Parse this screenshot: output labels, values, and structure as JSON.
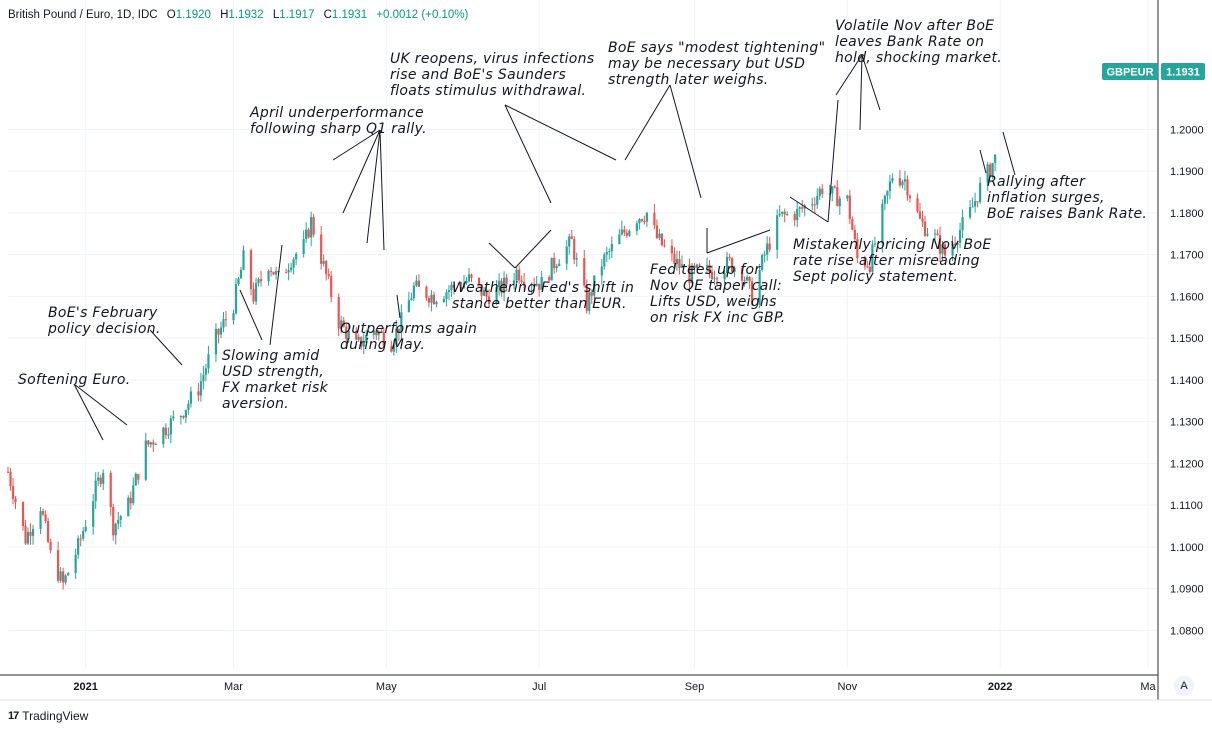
{
  "header": {
    "symbol": "British Pound / Euro, 1D, IDC",
    "open_label": "O",
    "open": "1.1920",
    "high_label": "H",
    "high": "1.1932",
    "low_label": "L",
    "low": "1.1917",
    "close_label": "C",
    "close": "1.1931",
    "change": "+0.0012 (+0.10%)"
  },
  "price_tag": {
    "ticker": "GBPEUR",
    "price": "1.1931"
  },
  "watermark": "TradingView",
  "auto_scale_button": "A",
  "colors": {
    "up": "#26a69a",
    "down": "#ef5350",
    "grid": "#f0f3fa",
    "axis_text": "#131722",
    "tag_bg": "#26a69a"
  },
  "chart_data": {
    "type": "candlestick",
    "x_range": [
      "2020-12-01",
      "2022-03-05"
    ],
    "x_ticks": [
      {
        "date": "2021-01-01",
        "label": "2021",
        "bold": true
      },
      {
        "date": "2021-03-01",
        "label": "Mar"
      },
      {
        "date": "2021-05-01",
        "label": "May"
      },
      {
        "date": "2021-07-01",
        "label": "Jul"
      },
      {
        "date": "2021-09-01",
        "label": "Sep"
      },
      {
        "date": "2021-11-01",
        "label": "Nov"
      },
      {
        "date": "2022-01-01",
        "label": "2022",
        "bold": true
      },
      {
        "date": "2022-03-01",
        "label": "Ma"
      }
    ],
    "y_ticks": [
      "1.2000",
      "1.1900",
      "1.1800",
      "1.1700",
      "1.1600",
      "1.1500",
      "1.1400",
      "1.1300",
      "1.1200",
      "1.1100",
      "1.1000",
      "1.0900",
      "1.0800"
    ],
    "y_range": [
      1.071,
      1.231
    ],
    "close_path": [
      [
        "2020-12-01",
        1.118
      ],
      [
        "2020-12-08",
        1.102
      ],
      [
        "2020-12-14",
        1.11
      ],
      [
        "2020-12-18",
        1.098
      ],
      [
        "2020-12-23",
        1.091
      ],
      [
        "2020-12-29",
        1.1
      ],
      [
        "2021-01-04",
        1.112
      ],
      [
        "2021-01-08",
        1.119
      ],
      [
        "2021-01-12",
        1.105
      ],
      [
        "2021-01-18",
        1.11
      ],
      [
        "2021-01-25",
        1.124
      ],
      [
        "2021-02-01",
        1.128
      ],
      [
        "2021-02-08",
        1.132
      ],
      [
        "2021-02-15",
        1.138
      ],
      [
        "2021-02-22",
        1.15
      ],
      [
        "2021-03-01",
        1.158
      ],
      [
        "2021-03-05",
        1.169
      ],
      [
        "2021-03-09",
        1.16
      ],
      [
        "2021-03-15",
        1.168
      ],
      [
        "2021-03-19",
        1.164
      ],
      [
        "2021-03-24",
        1.169
      ],
      [
        "2021-03-29",
        1.172
      ],
      [
        "2021-04-01",
        1.178
      ],
      [
        "2021-04-07",
        1.165
      ],
      [
        "2021-04-12",
        1.154
      ],
      [
        "2021-04-19",
        1.148
      ],
      [
        "2021-04-26",
        1.152
      ],
      [
        "2021-05-03",
        1.149
      ],
      [
        "2021-05-07",
        1.154
      ],
      [
        "2021-05-12",
        1.162
      ],
      [
        "2021-05-20",
        1.16
      ],
      [
        "2021-05-27",
        1.162
      ],
      [
        "2021-06-03",
        1.164
      ],
      [
        "2021-06-10",
        1.16
      ],
      [
        "2021-06-16",
        1.162
      ],
      [
        "2021-06-22",
        1.166
      ],
      [
        "2021-06-28",
        1.164
      ],
      [
        "2021-07-02",
        1.163
      ],
      [
        "2021-07-08",
        1.169
      ],
      [
        "2021-07-14",
        1.173
      ],
      [
        "2021-07-20",
        1.158
      ],
      [
        "2021-07-26",
        1.168
      ],
      [
        "2021-08-02",
        1.174
      ],
      [
        "2021-08-09",
        1.179
      ],
      [
        "2021-08-13",
        1.18
      ],
      [
        "2021-08-17",
        1.174
      ],
      [
        "2021-08-23",
        1.169
      ],
      [
        "2021-08-30",
        1.165
      ],
      [
        "2021-09-03",
        1.166
      ],
      [
        "2021-09-09",
        1.166
      ],
      [
        "2021-09-15",
        1.168
      ],
      [
        "2021-09-20",
        1.166
      ],
      [
        "2021-09-24",
        1.16
      ],
      [
        "2021-09-29",
        1.17
      ],
      [
        "2021-10-05",
        1.179
      ],
      [
        "2021-10-12",
        1.18
      ],
      [
        "2021-10-18",
        1.183
      ],
      [
        "2021-10-22",
        1.186
      ],
      [
        "2021-10-27",
        1.184
      ],
      [
        "2021-11-01",
        1.183
      ],
      [
        "2021-11-05",
        1.169
      ],
      [
        "2021-11-10",
        1.168
      ],
      [
        "2021-11-15",
        1.18
      ],
      [
        "2021-11-19",
        1.189
      ],
      [
        "2021-11-24",
        1.188
      ],
      [
        "2021-11-30",
        1.178
      ],
      [
        "2021-12-06",
        1.174
      ],
      [
        "2021-12-10",
        1.17
      ],
      [
        "2021-12-15",
        1.175
      ],
      [
        "2021-12-20",
        1.18
      ],
      [
        "2021-12-24",
        1.186
      ],
      [
        "2021-12-30",
        1.1931
      ]
    ],
    "annotations": [
      {
        "lines": [
          "Softening Euro."
        ],
        "anchor_date": "2021-01-05",
        "anchor_value": 1.119
      },
      {
        "lines": [
          "BoE's February",
          "policy decision."
        ],
        "anchor_date": "2021-02-17",
        "anchor_value": 1.135
      },
      {
        "lines": [
          "Slowing amid",
          "USD strength,",
          "FX market risk",
          "aversion."
        ],
        "anchor_date": "2021-03-25",
        "anchor_value": 1.16
      },
      {
        "lines": [
          "April underperformance",
          "following sharp Q1 rally."
        ],
        "anchor_date": "2021-04-04",
        "anchor_value": 1.178
      },
      {
        "lines": [
          "Outperforms again",
          "during May."
        ],
        "anchor_date": "2021-04-30",
        "anchor_value": 1.148
      },
      {
        "lines": [
          "UK reopens, virus infections",
          "rise and BoE's Saunders",
          "floats stimulus withdrawal."
        ],
        "anchor_date": "2021-07-01",
        "anchor_value": 1.17
      },
      {
        "lines": [
          "Weathering Fed's shift in",
          "stance better than EUR."
        ],
        "anchor_date": "2021-06-18",
        "anchor_value": 1.163
      },
      {
        "lines": [
          "BoE says \"modest tightening\"",
          "may be necessary but USD",
          "strength later weighs."
        ],
        "anchor_date": "2021-08-19",
        "anchor_value": 1.177
      },
      {
        "lines": [
          "Fed tees up for",
          "Nov QE taper call:",
          "Lifts USD, weighs",
          "on risk FX inc GBP."
        ],
        "anchor_date": "2021-09-02",
        "anchor_value": 1.164
      },
      {
        "lines": [
          "Volatile Nov after BoE",
          "leaves Bank Rate on",
          "hold, shocking market."
        ],
        "anchor_date": "2021-11-04",
        "anchor_value": 1.186
      },
      {
        "lines": [
          "Mistakenly pricing Nov BoE",
          "rate rise after misreading",
          "Sept policy statement."
        ],
        "anchor_date": "2021-10-23",
        "anchor_value": 1.183
      },
      {
        "lines": [
          "Rallying after",
          "inflation surges,",
          "BoE raises Bank Rate."
        ],
        "anchor_date": "2021-12-24",
        "anchor_value": 1.186
      }
    ]
  }
}
